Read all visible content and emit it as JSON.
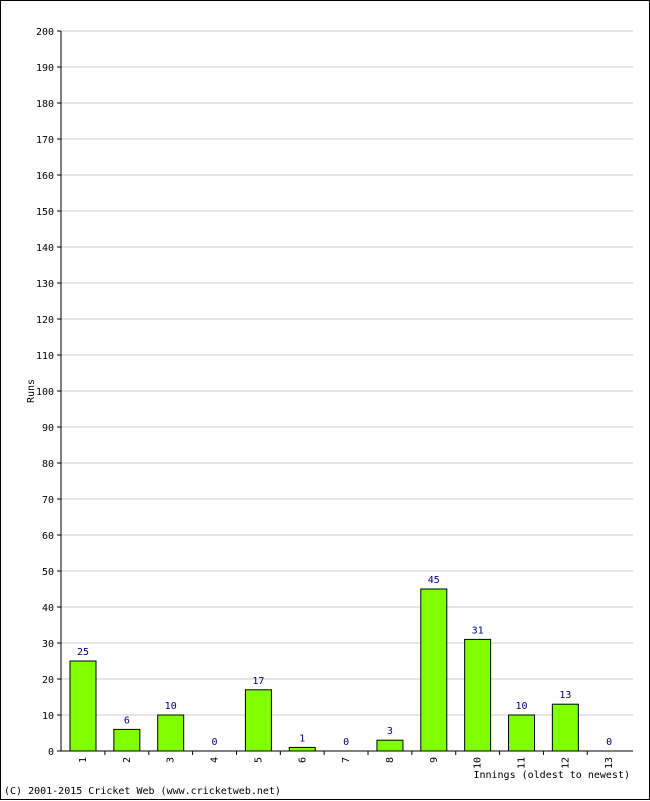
{
  "chart_data": {
    "type": "bar",
    "title": "",
    "xlabel": "Innings (oldest to newest)",
    "ylabel": "Runs",
    "categories": [
      "1",
      "2",
      "3",
      "4",
      "5",
      "6",
      "7",
      "8",
      "9",
      "10",
      "11",
      "12",
      "13"
    ],
    "values": [
      25,
      6,
      10,
      0,
      17,
      1,
      0,
      3,
      45,
      31,
      10,
      13,
      0
    ],
    "ylim": [
      0,
      200
    ],
    "yticks": [
      0,
      10,
      20,
      30,
      40,
      50,
      60,
      70,
      80,
      90,
      100,
      110,
      120,
      130,
      140,
      150,
      160,
      170,
      180,
      190,
      200
    ],
    "grid": true,
    "colors": {
      "bar": "#80ff00",
      "bar_stroke": "#000000",
      "label": "#000080",
      "grid": "#cccccc"
    }
  },
  "footer": {
    "copyright": "(C) 2001-2015 Cricket Web (www.cricketweb.net)"
  }
}
